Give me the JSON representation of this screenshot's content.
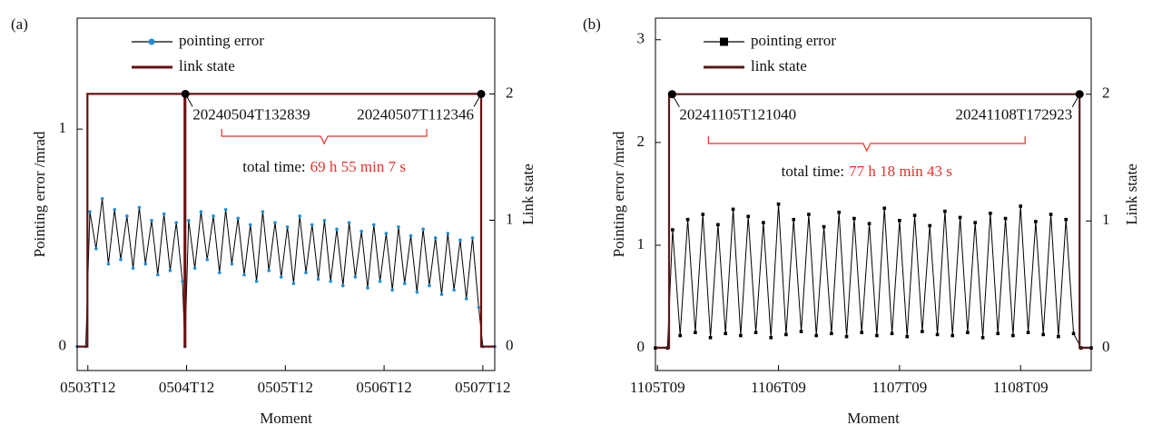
{
  "chart_data": [
    {
      "type": "line",
      "panel_label": "(a)",
      "xlabel": "Moment",
      "ylabel": "Pointing error /mrad",
      "y2label": "Link state",
      "xlim": [
        -2.6,
        98.9
      ],
      "xticks": [
        {
          "value": 0,
          "label": "0503T12"
        },
        {
          "value": 24,
          "label": "0504T12"
        },
        {
          "value": 48,
          "label": "0505T12"
        },
        {
          "value": 72,
          "label": "0506T12"
        },
        {
          "value": 96,
          "label": "0507T12"
        }
      ],
      "ylim": [
        -0.11,
        1.51
      ],
      "yticks": [
        0,
        1
      ],
      "y2lim": [
        -0.19,
        2.6
      ],
      "y2ticks": [
        0,
        1,
        2
      ],
      "legend": "upper left",
      "series": [
        {
          "name": "pointing error",
          "color": "#000000",
          "marker": "circle",
          "marker_color": "#1f8dd6",
          "axis": "y",
          "x": [
            -2.6,
            -0.5,
            0.5,
            2,
            3.5,
            5,
            6.5,
            8,
            9.5,
            11,
            12.5,
            14,
            15.5,
            17,
            18.5,
            20,
            21.5,
            23,
            23.6,
            24.5,
            26,
            27.5,
            29,
            30.5,
            32,
            33.5,
            35,
            36.5,
            38,
            39.5,
            41,
            42.5,
            44,
            45.5,
            47,
            48.5,
            50,
            51.5,
            53,
            54.5,
            56,
            57.5,
            59,
            60.5,
            62,
            63.5,
            65,
            66.5,
            68,
            69.5,
            71,
            72.5,
            74,
            75.5,
            77,
            78.5,
            80,
            81.5,
            83,
            84.5,
            86,
            87.5,
            89,
            90.5,
            92,
            93.5,
            95,
            96,
            98.9
          ],
          "values": [
            0,
            0,
            0.62,
            0.45,
            0.68,
            0.38,
            0.63,
            0.4,
            0.6,
            0.36,
            0.64,
            0.38,
            0.58,
            0.33,
            0.61,
            0.35,
            0.57,
            0.3,
            0,
            0.58,
            0.36,
            0.62,
            0.4,
            0.6,
            0.34,
            0.63,
            0.38,
            0.59,
            0.33,
            0.56,
            0.3,
            0.62,
            0.35,
            0.57,
            0.32,
            0.55,
            0.29,
            0.6,
            0.34,
            0.56,
            0.31,
            0.58,
            0.3,
            0.54,
            0.28,
            0.57,
            0.32,
            0.53,
            0.27,
            0.56,
            0.3,
            0.52,
            0.26,
            0.55,
            0.29,
            0.51,
            0.25,
            0.54,
            0.28,
            0.5,
            0.24,
            0.52,
            0.26,
            0.49,
            0.22,
            0.5,
            0.18,
            0,
            0
          ]
        },
        {
          "name": "link state",
          "color": "#6b0f0f",
          "axis": "y2",
          "x": [
            -2.6,
            -0.1,
            -0.1,
            23.5,
            23.5,
            23.7,
            23.7,
            95.6,
            95.6,
            98.9
          ],
          "values": [
            0,
            0,
            2,
            2,
            0,
            0,
            2,
            2,
            0,
            0
          ]
        }
      ],
      "annotations": [
        {
          "text": "20240504T132839",
          "x": 23.7,
          "y": 2
        },
        {
          "text": "20240507T112346",
          "x": 95.6,
          "y": 2
        }
      ],
      "total_time_label": "total time:",
      "total_time": "69 h 55 min 7 s"
    },
    {
      "type": "line",
      "panel_label": "(b)",
      "xlabel": "Moment",
      "ylabel": "Pointing error /mrad",
      "y2label": "Link state",
      "xlim": [
        -0.4,
        86
      ],
      "xticks": [
        {
          "value": 0,
          "label": "1105T09"
        },
        {
          "value": 24,
          "label": "1106T09"
        },
        {
          "value": 48,
          "label": "1107T09"
        },
        {
          "value": 72,
          "label": "1108T09"
        }
      ],
      "ylim": [
        -0.22,
        3.21
      ],
      "yticks": [
        0,
        1,
        2,
        3
      ],
      "y2lim": [
        -0.18,
        2.6
      ],
      "y2ticks": [
        0,
        1,
        2
      ],
      "legend": "upper left",
      "series": [
        {
          "name": "pointing error",
          "color": "#000000",
          "marker": "square",
          "marker_color": "#000000",
          "axis": "y",
          "x": [
            -0.4,
            2.0,
            3,
            4.5,
            6,
            7.5,
            9,
            10.5,
            12,
            13.5,
            15,
            16.5,
            18,
            19.5,
            21,
            22.5,
            24,
            25.5,
            27,
            28.5,
            30,
            31.5,
            33,
            34.5,
            36,
            37.5,
            39,
            40.5,
            42,
            43.5,
            45,
            46.5,
            48,
            49.5,
            51,
            52.5,
            54,
            55.5,
            57,
            58.5,
            60,
            61.5,
            63,
            64.5,
            66,
            67.5,
            69,
            70.5,
            72,
            73.5,
            75,
            76.5,
            78,
            79.5,
            81,
            82.5,
            84,
            86
          ],
          "values": [
            0,
            0,
            1.15,
            0.12,
            1.25,
            0.15,
            1.3,
            0.1,
            1.2,
            0.14,
            1.35,
            0.12,
            1.28,
            0.15,
            1.22,
            0.1,
            1.4,
            0.13,
            1.25,
            0.16,
            1.3,
            0.12,
            1.18,
            0.14,
            1.32,
            0.11,
            1.26,
            0.15,
            1.21,
            0.12,
            1.36,
            0.14,
            1.24,
            0.11,
            1.29,
            0.16,
            1.19,
            0.13,
            1.33,
            0.12,
            1.27,
            0.15,
            1.22,
            0.1,
            1.31,
            0.14,
            1.26,
            0.12,
            1.38,
            0.15,
            1.23,
            0.13,
            1.3,
            0.11,
            1.25,
            0.14,
            0,
            0
          ]
        },
        {
          "name": "link state",
          "color": "#5a1a1a",
          "axis": "y2",
          "x": [
            -0.4,
            2.3,
            2.3,
            83.7,
            83.7,
            86
          ],
          "values": [
            0,
            0,
            2,
            2,
            0,
            0
          ]
        }
      ],
      "annotations": [
        {
          "text": "20241105T121040",
          "x": 2.9,
          "y": 2
        },
        {
          "text": "20241108T172923",
          "x": 83.7,
          "y": 2
        }
      ],
      "total_time_label": "total time:",
      "total_time": "77 h 18 min 43 s"
    }
  ]
}
